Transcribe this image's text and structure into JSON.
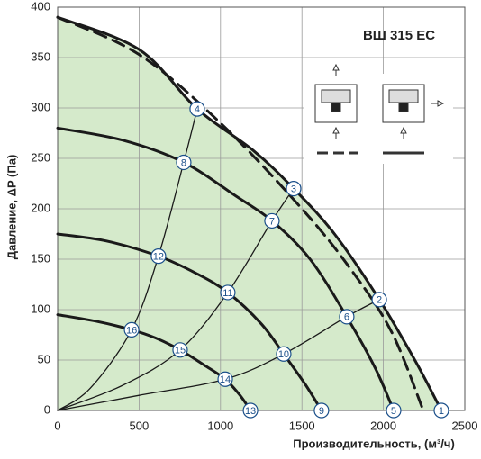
{
  "chart_data": {
    "type": "line",
    "title": "ВШ 315 ЕС",
    "x_label": "Производительность, (м³/ч)",
    "y_label": "Давление, ΔP (Па)",
    "xlim": [
      0,
      2500
    ],
    "xticks": [
      0,
      500,
      1000,
      1500,
      2000,
      2500
    ],
    "ylim": [
      0,
      400
    ],
    "yticks": [
      0,
      50,
      100,
      150,
      200,
      250,
      300,
      350,
      400
    ],
    "grid": true,
    "fill_color": "#d5eacb",
    "series": [
      {
        "color": "#1a1a1a",
        "width": 3,
        "style": "solid",
        "fill": true,
        "x": [
          0,
          500,
          857,
          1200,
          1449,
          1700,
          1975,
          2200,
          2356
        ],
        "values": [
          390,
          358,
          299,
          258,
          220,
          175,
          110,
          48,
          0
        ]
      },
      {
        "color": "#1a1a1a",
        "width": 3,
        "style": "dashed",
        "x": [
          0,
          500,
          1000,
          1500,
          1800,
          2050,
          2245
        ],
        "values": [
          390,
          353,
          285,
          200,
          140,
          78,
          0
        ]
      },
      {
        "color": "#1a1a1a",
        "width": 3,
        "style": "solid",
        "x": [
          0,
          400,
          774,
          1100,
          1316,
          1550,
          1775,
          1950,
          2063
        ],
        "values": [
          280,
          268,
          246,
          212,
          188,
          150,
          93,
          42,
          0
        ]
      },
      {
        "color": "#1a1a1a",
        "width": 3,
        "style": "solid",
        "x": [
          0,
          300,
          619,
          850,
          1045,
          1250,
          1388,
          1520,
          1620
        ],
        "values": [
          175,
          168,
          153,
          136,
          117,
          86,
          56,
          26,
          0
        ]
      },
      {
        "color": "#1a1a1a",
        "width": 3,
        "style": "solid",
        "x": [
          0,
          250,
          454,
          600,
          752,
          900,
          1029,
          1120,
          1184
        ],
        "values": [
          95,
          88,
          80,
          72,
          60,
          45,
          31,
          15,
          0
        ]
      },
      {
        "color": "#1a1a1a",
        "width": 1.3,
        "style": "solid",
        "x": [
          0,
          200,
          454,
          619,
          774,
          857
        ],
        "values": [
          0,
          22,
          80,
          153,
          246,
          299
        ]
      },
      {
        "color": "#1a1a1a",
        "width": 1.3,
        "style": "solid",
        "x": [
          0,
          400,
          752,
          1045,
          1316,
          1449
        ],
        "values": [
          0,
          25,
          60,
          117,
          188,
          220
        ]
      },
      {
        "color": "#1a1a1a",
        "width": 1.3,
        "style": "solid",
        "x": [
          0,
          500,
          1029,
          1388,
          1775,
          1975
        ],
        "values": [
          0,
          15,
          31,
          56,
          93,
          110
        ]
      }
    ],
    "markers": [
      {
        "label": "1",
        "x": 2356,
        "y": 0
      },
      {
        "label": "2",
        "x": 1975,
        "y": 110
      },
      {
        "label": "3",
        "x": 1449,
        "y": 220
      },
      {
        "label": "4",
        "x": 857,
        "y": 299
      },
      {
        "label": "5",
        "x": 2063,
        "y": 0
      },
      {
        "label": "6",
        "x": 1775,
        "y": 93
      },
      {
        "label": "7",
        "x": 1316,
        "y": 188
      },
      {
        "label": "8",
        "x": 774,
        "y": 246
      },
      {
        "label": "9",
        "x": 1620,
        "y": 0
      },
      {
        "label": "10",
        "x": 1388,
        "y": 56
      },
      {
        "label": "11",
        "x": 1045,
        "y": 117
      },
      {
        "label": "12",
        "x": 619,
        "y": 153
      },
      {
        "label": "13",
        "x": 1184,
        "y": 0
      },
      {
        "label": "14",
        "x": 1029,
        "y": 31
      },
      {
        "label": "15",
        "x": 752,
        "y": 60
      },
      {
        "label": "16",
        "x": 454,
        "y": 80
      }
    ]
  }
}
